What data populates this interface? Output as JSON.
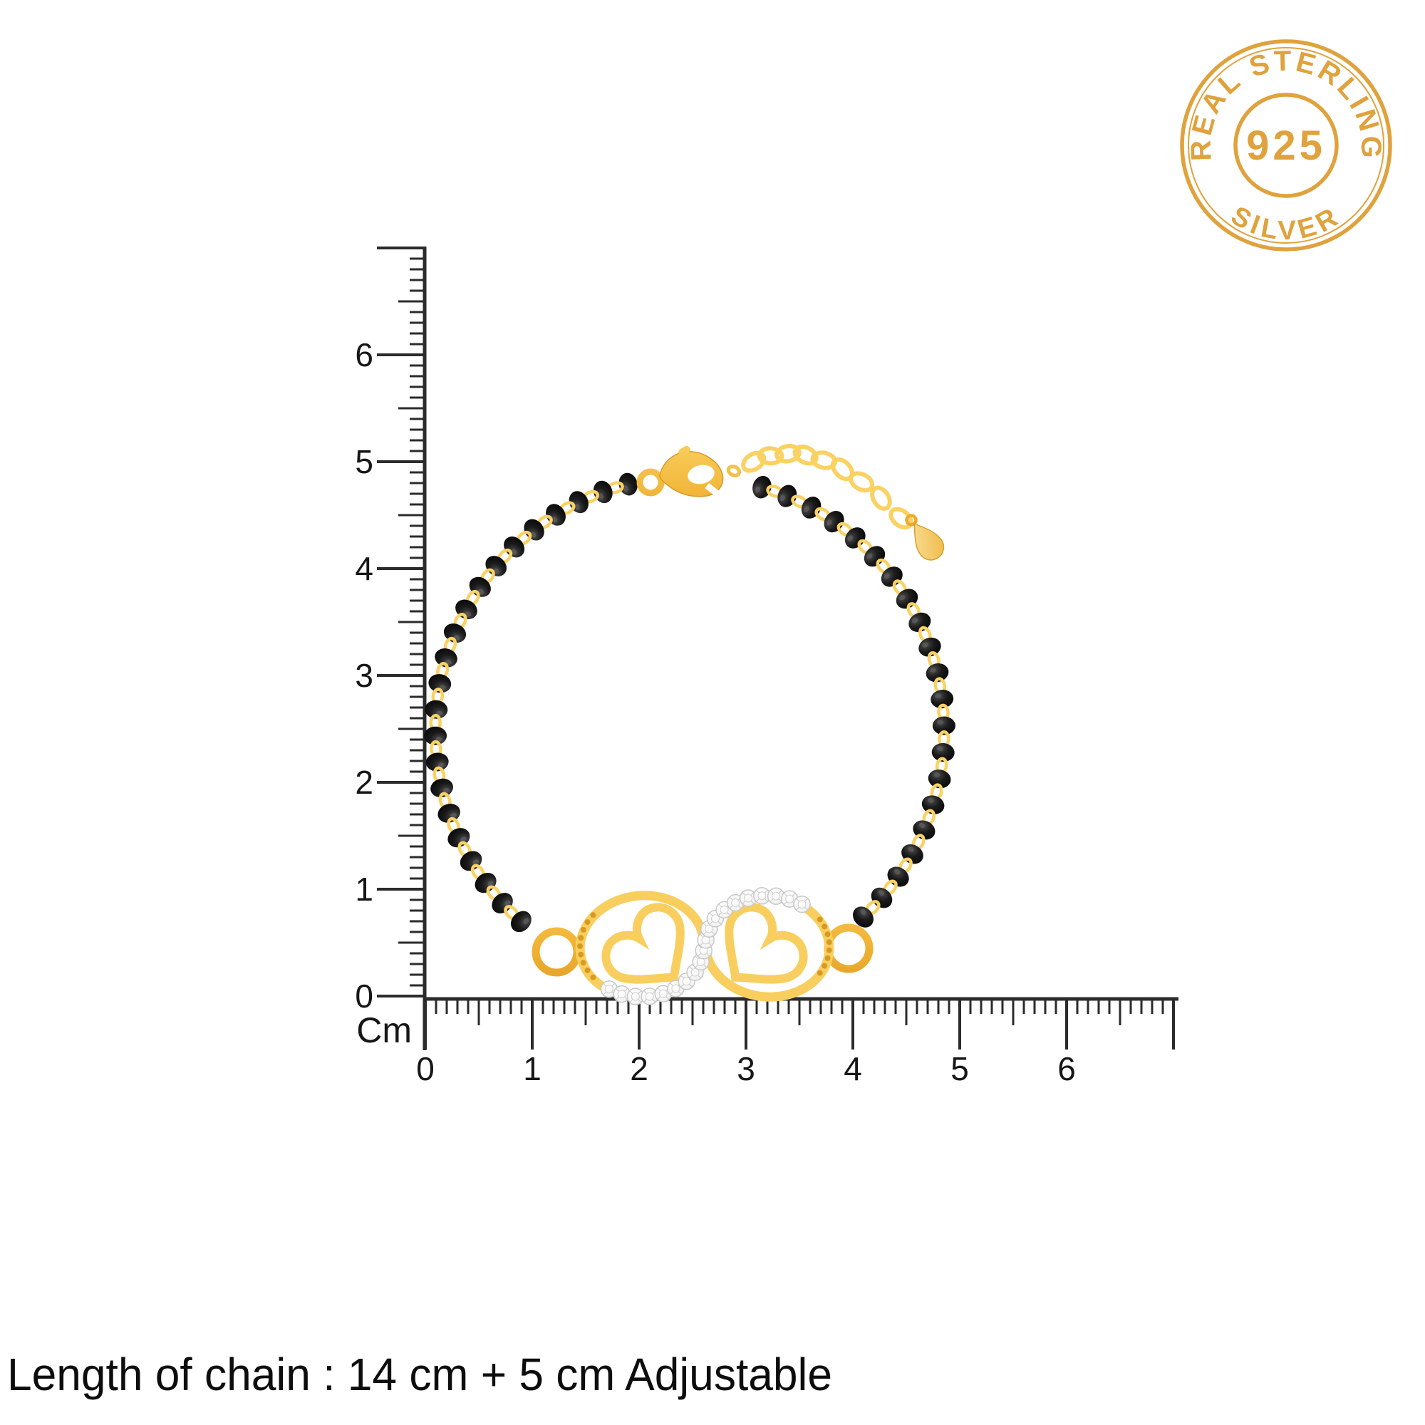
{
  "stamp": {
    "top_text": "REAL STERLING",
    "center_text": "925",
    "bottom_text": "SILVER",
    "color": "#dfa23d"
  },
  "ruler": {
    "unit_label": "Cm",
    "vertical_labels": [
      "6",
      "5",
      "4",
      "3",
      "2",
      "1",
      "0"
    ],
    "horizontal_labels": [
      "0",
      "1",
      "2",
      "3",
      "4",
      "5",
      "6"
    ],
    "tick_color": "#2b2b2b",
    "label_color": "#161616"
  },
  "caption": {
    "text": "Length of chain : 14 cm + 5 cm Adjustable",
    "color": "#0d0d0d"
  },
  "bracelet": {
    "gold_color": "#f2b93c",
    "gold_dark": "#cf8f1d",
    "gold_light": "#ffe291",
    "bead_color": "#101010",
    "bead_highlight": "#5a5a5a",
    "stone_color": "#ffffff",
    "stone_edge": "#c9c9c9",
    "milgrain_color": "#d99a22"
  }
}
